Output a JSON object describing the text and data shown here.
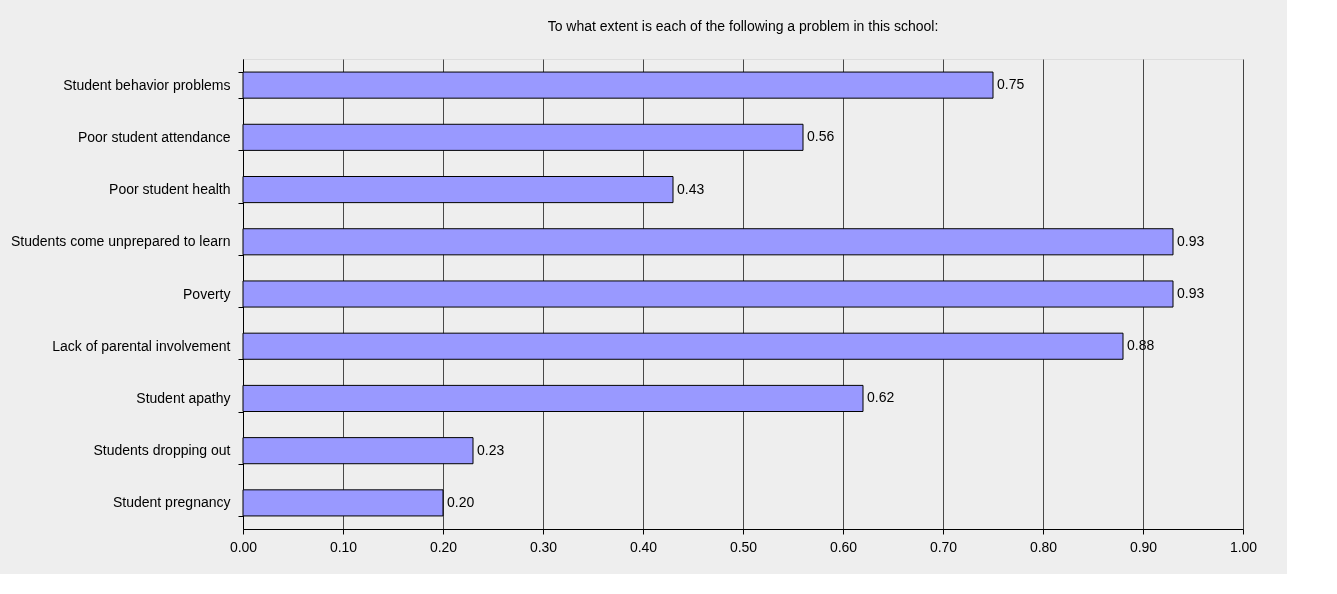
{
  "chart_data": {
    "type": "bar",
    "orientation": "horizontal",
    "title": "To what extent is each of the following a problem in this school:",
    "categories": [
      "Student behavior problems",
      "Poor student attendance",
      "Poor student health",
      "Students come unprepared to learn",
      "Poverty",
      "Lack of parental involvement",
      "Student apathy",
      "Students dropping out",
      "Student pregnancy"
    ],
    "values": [
      0.75,
      0.56,
      0.43,
      0.93,
      0.93,
      0.88,
      0.62,
      0.23,
      0.2
    ],
    "value_labels": [
      "0.75",
      "0.56",
      "0.43",
      "0.93",
      "0.93",
      "0.88",
      "0.62",
      "0.23",
      "0.20"
    ],
    "color": "#9999ff",
    "xlim": [
      0,
      1
    ],
    "xticks": [
      {
        "value": 0,
        "label": "0.00"
      },
      {
        "value": 0.1,
        "label": "0.10"
      },
      {
        "value": 0.2,
        "label": "0.20"
      },
      {
        "value": 0.3,
        "label": "0.30"
      },
      {
        "value": 0.4,
        "label": "0.40"
      },
      {
        "value": 0.5,
        "label": "0.50"
      },
      {
        "value": 0.6,
        "label": "0.60"
      },
      {
        "value": 0.7,
        "label": "0.70"
      },
      {
        "value": 0.8,
        "label": "0.80"
      },
      {
        "value": 0.9,
        "label": "0.90"
      },
      {
        "value": 1,
        "label": "1.00"
      }
    ],
    "grid": "x"
  }
}
